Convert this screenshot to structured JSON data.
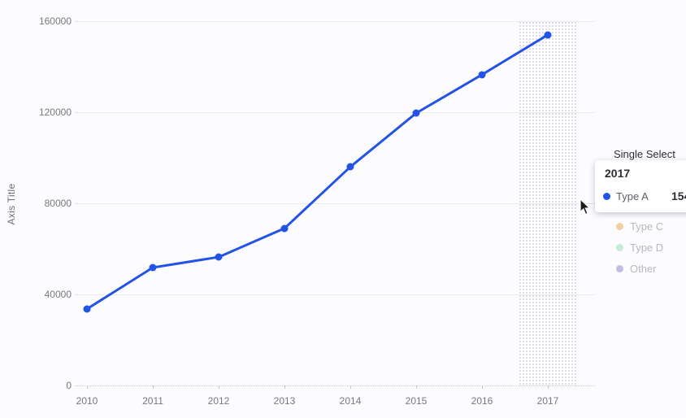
{
  "chart_data": {
    "type": "line",
    "title": "",
    "x": [
      "2010",
      "2011",
      "2012",
      "2013",
      "2014",
      "2015",
      "2016",
      "2017"
    ],
    "series": [
      {
        "name": "Type A",
        "color": "#2353e6",
        "values": [
          33600,
          51800,
          56400,
          69000,
          96000,
          119600,
          136500,
          154000
        ]
      }
    ],
    "xlabel": "",
    "ylabel": "Axis Title",
    "ylim": [
      0,
      160000
    ],
    "yticks": [
      0,
      40000,
      80000,
      120000,
      160000
    ],
    "grid": true,
    "grid_style": "dotted",
    "highlighted_category": "2017"
  },
  "right_panel": {
    "mode_label": "Single Select",
    "tooltip": {
      "title": "2017",
      "series_label": "Type A",
      "value_visible": "154",
      "dot_color": "#2353e6"
    },
    "legend_disabled": [
      {
        "label": "Type C",
        "color": "#f2c08c"
      },
      {
        "label": "Type D",
        "color": "#b8e6c9"
      },
      {
        "label": "Other",
        "color": "#b5aade"
      }
    ]
  },
  "colors": {
    "line": "#2353e6",
    "grid": "#d4d7e0",
    "axis_text": "#75787f",
    "disabled_text": "#b4b8c0",
    "band_dot": "#c9cce0"
  }
}
